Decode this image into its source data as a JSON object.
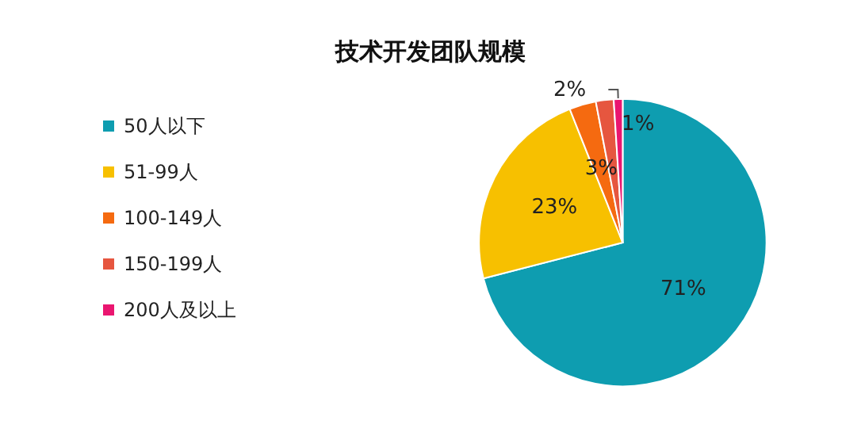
{
  "chart_data": {
    "type": "pie",
    "title": "技术开发团队规模",
    "categories": [
      "50人以下",
      "51-99人",
      "100-149人",
      "150-199人",
      "200人及以上"
    ],
    "values": [
      71,
      23,
      3,
      2,
      1
    ],
    "colors": [
      "#0e9db0",
      "#f7c000",
      "#f56a10",
      "#e6563f",
      "#ea1670"
    ],
    "value_labels": [
      "71%",
      "23%",
      "3%",
      "2%",
      "1%"
    ],
    "legend": "left"
  }
}
